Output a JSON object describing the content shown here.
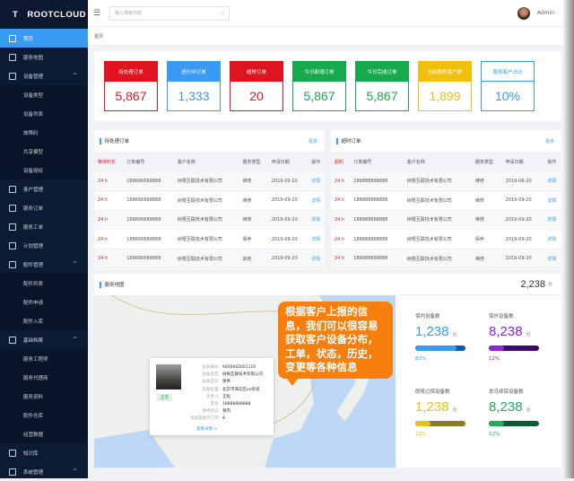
{
  "brand": "ROOTCLOUD",
  "sidebar": {
    "items": [
      {
        "label": "首页",
        "active": true
      },
      {
        "label": "服务地图"
      },
      {
        "label": "设备管理",
        "expanded": true
      },
      {
        "label": "设备类型",
        "sub": true
      },
      {
        "label": "设备列表",
        "sub": true
      },
      {
        "label": "故障码",
        "sub": true
      },
      {
        "label": "共享模型",
        "sub": true
      },
      {
        "label": "设备授权",
        "sub": true
      },
      {
        "label": "客户管理"
      },
      {
        "label": "服务订单"
      },
      {
        "label": "服务工单"
      },
      {
        "label": "计划管理"
      },
      {
        "label": "配件管理",
        "expanded": true
      },
      {
        "label": "配件列表",
        "sub": true
      },
      {
        "label": "配件申请",
        "sub": true
      },
      {
        "label": "配件入库",
        "sub": true
      },
      {
        "label": "基础档案",
        "expanded": true
      },
      {
        "label": "服务工程师",
        "sub": true
      },
      {
        "label": "服务代理商",
        "sub": true
      },
      {
        "label": "服务资料",
        "sub": true
      },
      {
        "label": "配件仓库",
        "sub": true
      },
      {
        "label": "经营数据",
        "sub": true
      },
      {
        "label": "知识库"
      },
      {
        "label": "系统管理",
        "expanded": true
      }
    ]
  },
  "header": {
    "search_placeholder": "输入搜索内容",
    "user": "Admin"
  },
  "breadcrumb": "首页",
  "stats": [
    {
      "label": "待处理订单",
      "value": "5,867",
      "color": "#e0141e"
    },
    {
      "label": "进行中订单",
      "value": "1,333",
      "color": "#3a9bf4"
    },
    {
      "label": "超时订单",
      "value": "20",
      "color": "#e0141e"
    },
    {
      "label": "今日新增订单",
      "value": "5,867",
      "color": "#16a94e"
    },
    {
      "label": "今日完成订单",
      "value": "5,867",
      "color": "#16a94e"
    },
    {
      "label": "当前服务客户数",
      "value": "1,899",
      "color": "#f0c00c"
    },
    {
      "label": "服务客户占比",
      "value": "10%",
      "color": "#3a9bf4",
      "outline": true
    }
  ],
  "pending": {
    "title": "待处理订单",
    "more": "更多",
    "columns": [
      "等待时长",
      "订单编号",
      "客户名称",
      "服务类型",
      "申请日期",
      "操作"
    ],
    "rows": [
      [
        "24 h",
        "188666688888",
        "树根互联技术有限公司",
        "维修",
        "2019-09-20",
        "详情"
      ],
      [
        "24 h",
        "188666688888",
        "树根互联技术有限公司",
        "维修",
        "2019-09-20",
        "详情"
      ],
      [
        "24 h",
        "188666688888",
        "树根互联技术有限公司",
        "维修",
        "2019-09-20",
        "详情"
      ],
      [
        "24 h",
        "188666688888",
        "树根互联技术有限公司",
        "保养",
        "2019-09-20",
        "详情"
      ],
      [
        "24 h",
        "188666688888",
        "树根互联技术有限公司",
        "其他",
        "2019-09-20",
        "详情"
      ]
    ]
  },
  "overtime": {
    "title": "超时订单",
    "more": "更多",
    "columns": [
      "超时",
      "订单编号",
      "客户名称",
      "服务类型",
      "申请日期",
      "操作"
    ],
    "rows": [
      [
        "24 h",
        "188888888888",
        "树根互联技术有限公司",
        "维修",
        "2019-09-20",
        "详情"
      ],
      [
        "24 h",
        "188888888888",
        "树根互联技术有限公司",
        "维修",
        "2019-09-20",
        "详情"
      ],
      [
        "24 h",
        "188888888888",
        "树根互联技术有限公司",
        "维修",
        "2019-09-20",
        "详情"
      ],
      [
        "24 h",
        "188888888888",
        "树根互联技术有限公司",
        "保养",
        "2019-09-20",
        "详情"
      ],
      [
        "24 h",
        "188888888888",
        "树根互联技术有限公司",
        "维修",
        "2019-09-20",
        "详情"
      ]
    ]
  },
  "map": {
    "title": "服务地图",
    "popup": {
      "badge": "正常",
      "rows": [
        [
          "设备编号:",
          "6600662001120"
        ],
        [
          "设备类型:",
          "树根互联技术有限公司"
        ],
        [
          "设备型号:",
          "保养"
        ],
        [
          "设备位置:",
          "北京市海淀区xx街道"
        ],
        [
          "负责人:",
          "王松"
        ],
        [
          "电话:",
          "18888888888"
        ],
        [
          "保修状态:",
          "保内"
        ],
        [
          "待处理服务订单:",
          "6"
        ]
      ],
      "detail": "查看详情 >"
    }
  },
  "devices": {
    "total": "2,238",
    "unit": "台",
    "metrics": [
      {
        "label": "保内设备数",
        "value": "1,238",
        "unit": "台",
        "percent": 82,
        "pct_label": "82%",
        "color": "#3a9bf4",
        "dark": "#0d5aa7"
      },
      {
        "label": "保外设备数",
        "value": "8,238",
        "unit": "台",
        "percent": 12,
        "pct_label": "12%",
        "color": "#8a25d8",
        "dark": "#3d0c6a"
      },
      {
        "label": "即将过保设备数",
        "value": "1,238",
        "unit": "台",
        "percent": 12,
        "pct_label": "12%",
        "color": "#e9c217",
        "dark": "#8a7a2a"
      },
      {
        "label": "本月续保设备数",
        "value": "8,238",
        "unit": "台",
        "percent": 12,
        "pct_label": "12%",
        "color": "#1bae5c",
        "dark": "#0f5a30"
      }
    ]
  },
  "callout": "根据客户上报的信息，我们可以很容易获取客户设备分布，工单，状态，历史，变更等各种信息"
}
